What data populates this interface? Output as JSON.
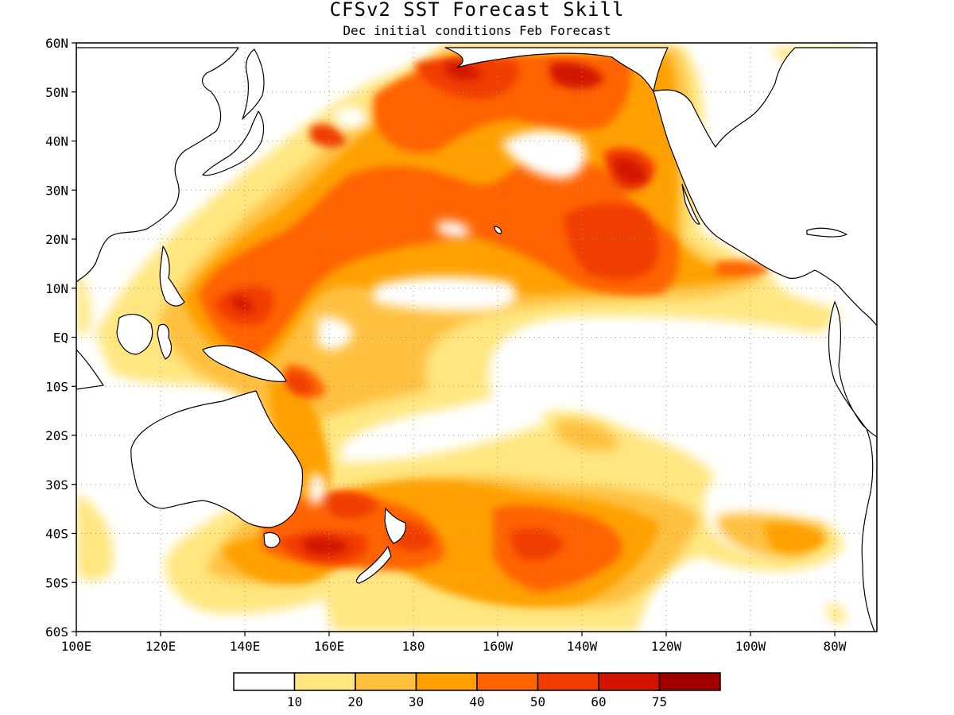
{
  "title": "CFSv2 SST Forecast Skill",
  "subtitle": "Dec initial conditions  Feb Forecast",
  "map": {
    "lon_range": [
      100,
      290
    ],
    "lat_range": [
      -60,
      60
    ],
    "lat_ticks": [
      {
        "lat": 60,
        "label": "60N"
      },
      {
        "lat": 50,
        "label": "50N"
      },
      {
        "lat": 40,
        "label": "40N"
      },
      {
        "lat": 30,
        "label": "30N"
      },
      {
        "lat": 20,
        "label": "20N"
      },
      {
        "lat": 10,
        "label": "10N"
      },
      {
        "lat": 0,
        "label": "EQ"
      },
      {
        "lat": -10,
        "label": "10S"
      },
      {
        "lat": -20,
        "label": "20S"
      },
      {
        "lat": -30,
        "label": "30S"
      },
      {
        "lat": -40,
        "label": "40S"
      },
      {
        "lat": -50,
        "label": "50S"
      },
      {
        "lat": -60,
        "label": "60S"
      }
    ],
    "lon_ticks": [
      {
        "lon": 100,
        "label": "100E"
      },
      {
        "lon": 120,
        "label": "120E"
      },
      {
        "lon": 140,
        "label": "140E"
      },
      {
        "lon": 160,
        "label": "160E"
      },
      {
        "lon": 180,
        "label": "180"
      },
      {
        "lon": 200,
        "label": "160W"
      },
      {
        "lon": 220,
        "label": "140W"
      },
      {
        "lon": 240,
        "label": "120W"
      },
      {
        "lon": 260,
        "label": "100W"
      },
      {
        "lon": 280,
        "label": "80W"
      }
    ],
    "gridlines": "dotted"
  },
  "colorbar": {
    "colors": [
      "#ffffff",
      "#ffe680",
      "#ffc040",
      "#ffa000",
      "#ff6400",
      "#f03c00",
      "#d21400",
      "#a00000"
    ],
    "labels": [
      "10",
      "20",
      "30",
      "40",
      "50",
      "60",
      "75"
    ]
  }
}
